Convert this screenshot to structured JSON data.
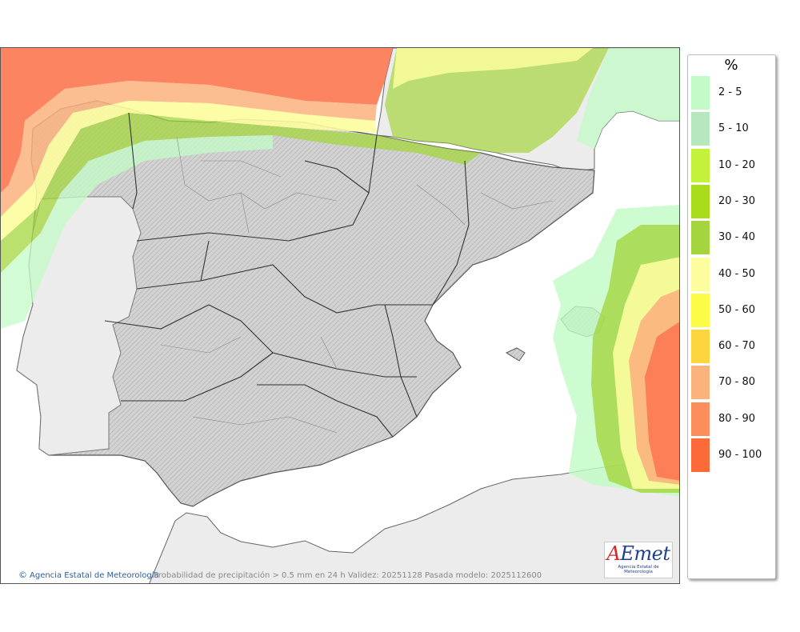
{
  "map": {
    "credit": "Agencia Estatal de Meteorología",
    "caption": "Probabilidad de precipitación > 0.5 mm en 24 h Validez: 20251128 Pasada modelo: 2025112600",
    "logo": {
      "word_a": "A",
      "word_rest": "Emet",
      "sub": "Agencia Estatal de Meteorología"
    }
  },
  "legend": {
    "unit": "%",
    "items": [
      {
        "label": "2 - 5",
        "color": "#c2fbc6"
      },
      {
        "label": "5 - 10",
        "color": "#b7e7bd"
      },
      {
        "label": "10 - 20",
        "color": "#c3f23a"
      },
      {
        "label": "20 - 30",
        "color": "#a9dc1b"
      },
      {
        "label": "30 - 40",
        "color": "#a5d53e"
      },
      {
        "label": "40 - 50",
        "color": "#fdfd9e"
      },
      {
        "label": "50 - 60",
        "color": "#fcfc47"
      },
      {
        "label": "60 - 70",
        "color": "#fdd53e"
      },
      {
        "label": "70 - 80",
        "color": "#fcb27c"
      },
      {
        "label": "80 - 90",
        "color": "#fc8e5e"
      },
      {
        "label": "90 - 100",
        "color": "#fd6a3a"
      }
    ]
  }
}
